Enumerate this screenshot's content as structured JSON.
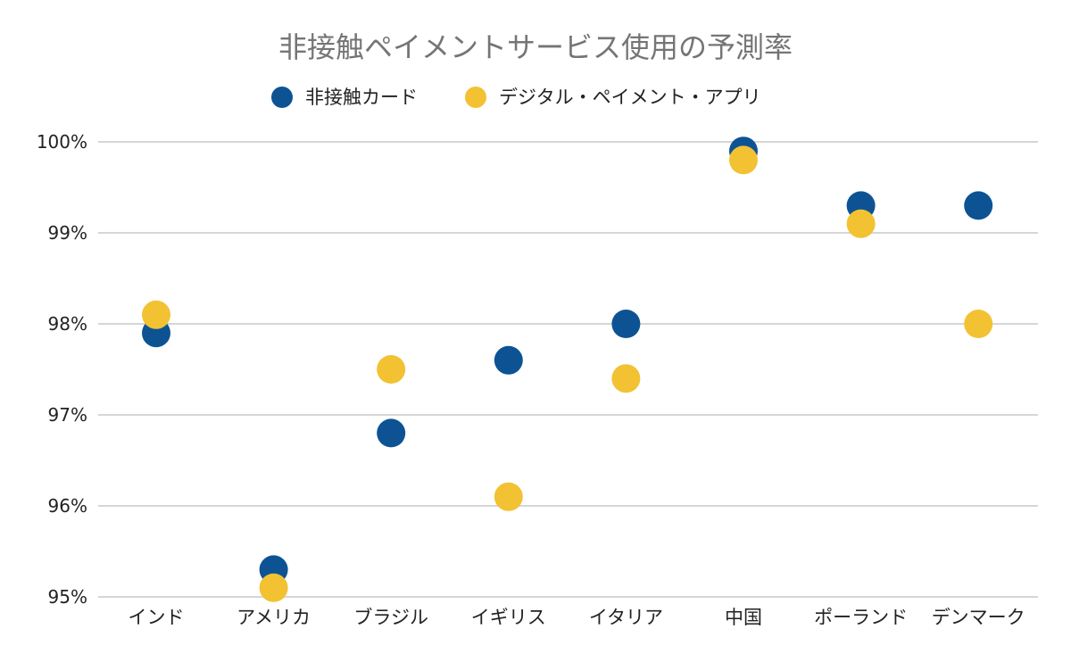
{
  "chart_data": {
    "type": "scatter",
    "title": "非接触ペイメントサービス使用の予測率",
    "categories": [
      "インド",
      "アメリカ",
      "ブラジル",
      "イギリス",
      "イタリア",
      "中国",
      "ポーランド",
      "デンマーク"
    ],
    "series": [
      {
        "name": "非接触カード",
        "color": "#0d5394",
        "values": [
          97.9,
          95.3,
          96.8,
          97.6,
          98.0,
          99.9,
          99.3,
          99.3
        ]
      },
      {
        "name": "デジタル・ペイメント・アプリ",
        "color": "#f2c233",
        "values": [
          98.1,
          95.1,
          97.5,
          96.1,
          97.4,
          99.8,
          99.1,
          98.0
        ]
      }
    ],
    "yticks": [
      {
        "value": 95,
        "label": "95%"
      },
      {
        "value": 96,
        "label": "96%"
      },
      {
        "value": 97,
        "label": "97%"
      },
      {
        "value": 98,
        "label": "98%"
      },
      {
        "value": 99,
        "label": "99%"
      },
      {
        "value": 100,
        "label": "100%"
      }
    ],
    "ylim": [
      95,
      100
    ],
    "grid": true,
    "legend_position": "top-center"
  }
}
